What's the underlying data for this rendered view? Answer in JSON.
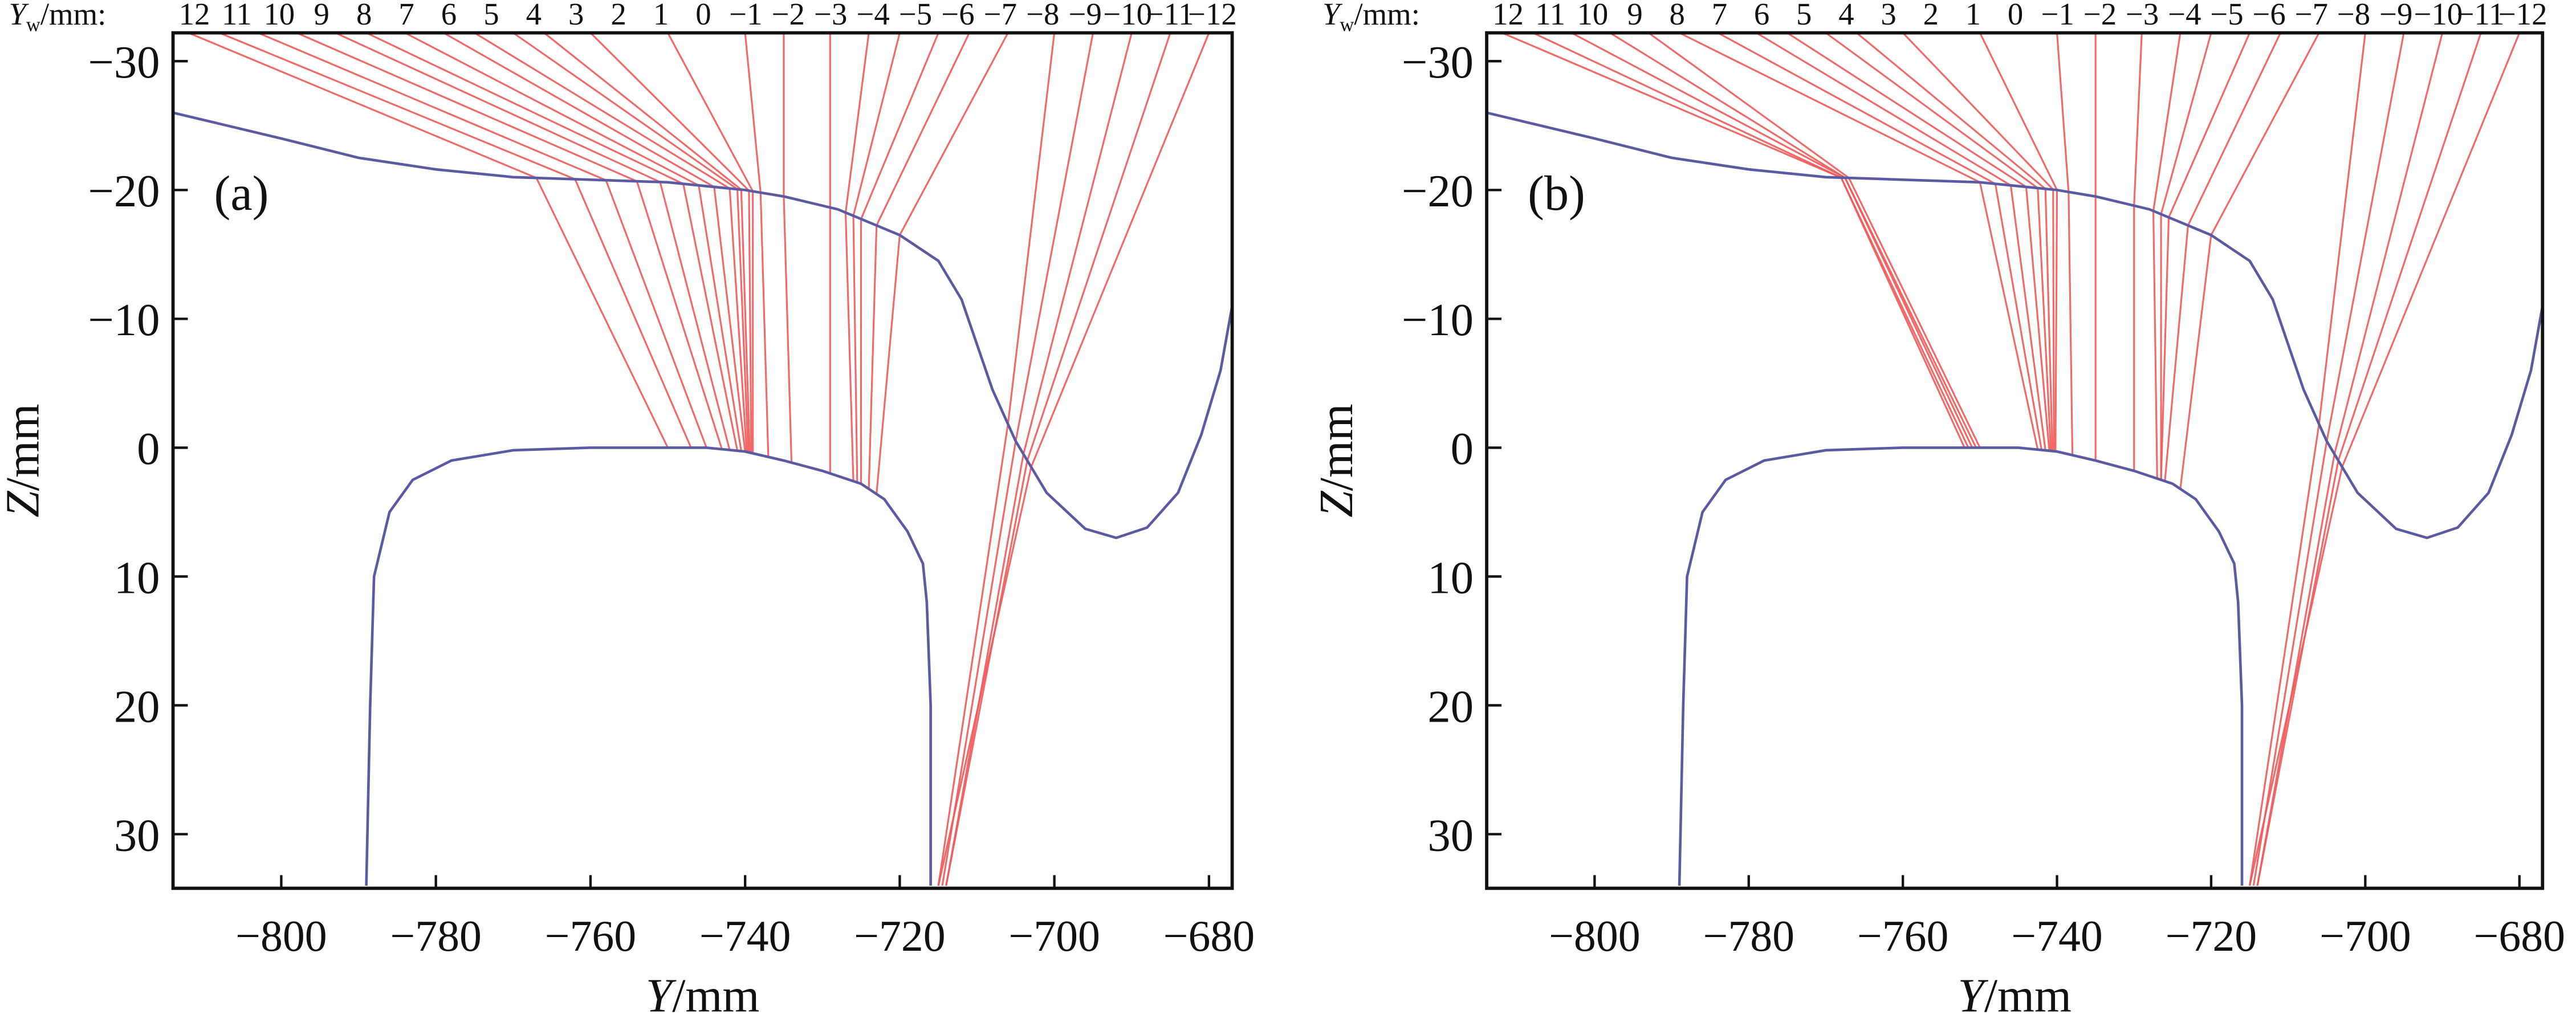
{
  "chart_data": [
    {
      "type": "line",
      "panel_label": "(a)",
      "xlabel_var": "Y",
      "xlabel_unit": "/mm",
      "ylabel_var": "Z",
      "ylabel_unit": "/mm",
      "top_axis_label_var": "Y",
      "top_axis_label_sub": "w",
      "top_axis_label_unit": "/mm:",
      "top_ticks": [
        "12",
        "11",
        "10",
        "9",
        "8",
        "7",
        "6",
        "5",
        "4",
        "3",
        "2",
        "1",
        "0",
        "−1",
        "−2",
        "−3",
        "−4",
        "−5",
        "−6",
        "−7",
        "−8",
        "−9",
        "−10",
        "−11",
        "−12"
      ],
      "xlim": [
        -814,
        -677
      ],
      "ylim": [
        -32.2,
        34.2
      ],
      "y_inverted": true,
      "xticks": [
        -800,
        -780,
        -760,
        -740,
        -720,
        -700,
        -680
      ],
      "xtick_labels": [
        "−800",
        "−780",
        "−760",
        "−740",
        "−720",
        "−700",
        "−680"
      ],
      "yticks": [
        -30,
        -20,
        -10,
        0,
        10,
        20,
        30
      ],
      "ytick_labels": [
        "−30",
        "−20",
        "−10",
        "0",
        "10",
        "20",
        "30"
      ],
      "grid": false,
      "series": [
        {
          "name": "wheel profile",
          "color": "#5b5ba3",
          "points": [
            [
              -814,
              -26
            ],
            [
              -800,
              -24
            ],
            [
              -790,
              -22.5
            ],
            [
              -780,
              -21.6
            ],
            [
              -770,
              -21
            ],
            [
              -760,
              -20.8
            ],
            [
              -750,
              -20.6
            ],
            [
              -740,
              -20
            ],
            [
              -735,
              -19.5
            ],
            [
              -728,
              -18.5
            ],
            [
              -720,
              -16.5
            ],
            [
              -715,
              -14.5
            ],
            [
              -712,
              -11.5
            ],
            [
              -710,
              -8
            ],
            [
              -708,
              -4.5
            ],
            [
              -705,
              -0.5
            ],
            [
              -701,
              3.5
            ],
            [
              -696,
              6.3
            ],
            [
              -692,
              7
            ],
            [
              -688,
              6.2
            ],
            [
              -684,
              3.5
            ],
            [
              -681,
              -1
            ],
            [
              -678.5,
              -6
            ],
            [
              -677,
              -11
            ]
          ]
        },
        {
          "name": "rail profile",
          "color": "#5b5ba3",
          "points": [
            [
              -789,
              34
            ],
            [
              -788.5,
              20
            ],
            [
              -788,
              10
            ],
            [
              -786,
              5
            ],
            [
              -783,
              2.5
            ],
            [
              -778,
              1
            ],
            [
              -770,
              0.2
            ],
            [
              -760,
              0
            ],
            [
              -745,
              0
            ],
            [
              -740,
              0.3
            ],
            [
              -735,
              1
            ],
            [
              -730,
              1.8
            ],
            [
              -725,
              2.8
            ],
            [
              -722,
              4
            ],
            [
              -719,
              6.5
            ],
            [
              -717,
              9
            ],
            [
              -716.5,
              12
            ],
            [
              -716,
              20
            ],
            [
              -716,
              34
            ]
          ]
        }
      ],
      "contact_lines": {
        "color": "#ef5a5a",
        "center_color": "#7fcfc8",
        "columns": [
          "source_Y",
          "wheel_contact_Y",
          "rail_contact_Y"
        ],
        "rows": [
          [
            -812,
            -767,
            -750
          ],
          [
            -808,
            -762,
            -747
          ],
          [
            -803,
            -758,
            -745
          ],
          [
            -798,
            -754,
            -743
          ],
          [
            -793,
            -751,
            -742
          ],
          [
            -789,
            -748,
            -741
          ],
          [
            -784,
            -746,
            -740.5
          ],
          [
            -779,
            -744,
            -740
          ],
          [
            -775,
            -742,
            -739.8
          ],
          [
            -770,
            -741,
            -739.6
          ],
          [
            -766,
            -740.5,
            -739.4
          ],
          [
            -760,
            -739.5,
            -739.2
          ],
          [
            -750,
            -739,
            -739
          ],
          [
            -740,
            -738,
            -737
          ],
          [
            -735,
            -735,
            -734
          ],
          [
            -729,
            -729,
            -729
          ],
          [
            -724,
            -727,
            -726
          ],
          [
            -720,
            -726,
            -725.5
          ],
          [
            -715,
            -725,
            -725
          ],
          [
            -711,
            -723,
            -724
          ],
          [
            -706,
            -720,
            -723
          ],
          [
            -700,
            -706,
            -715
          ],
          [
            -695,
            -705,
            -714.5
          ],
          [
            -690,
            -704,
            -714
          ],
          [
            -685,
            -703.5,
            -714
          ],
          [
            -680,
            -703,
            -715
          ]
        ],
        "center_line": [
          -744.4,
          -740,
          -740
        ]
      }
    },
    {
      "type": "line",
      "panel_label": "(b)",
      "xlabel_var": "Y",
      "xlabel_unit": "/mm",
      "ylabel_var": "Z",
      "ylabel_unit": "/mm",
      "top_axis_label_var": "Y",
      "top_axis_label_sub": "w",
      "top_axis_label_unit": "/mm:",
      "top_ticks": [
        "12",
        "11",
        "10",
        "9",
        "8",
        "7",
        "6",
        "5",
        "4",
        "3",
        "2",
        "1",
        "0",
        "−1",
        "−2",
        "−3",
        "−4",
        "−5",
        "−6",
        "−7",
        "−8",
        "−9",
        "−10",
        "−11",
        "−12"
      ],
      "xlim": [
        -814,
        -677
      ],
      "ylim": [
        -32.2,
        34.2
      ],
      "y_inverted": true,
      "xticks": [
        -800,
        -780,
        -760,
        -740,
        -720,
        -700,
        -680
      ],
      "xtick_labels": [
        "−800",
        "−780",
        "−760",
        "−740",
        "−720",
        "−700",
        "−680"
      ],
      "yticks": [
        -30,
        -20,
        -10,
        0,
        10,
        20,
        30
      ],
      "ytick_labels": [
        "−30",
        "−20",
        "−10",
        "0",
        "10",
        "20",
        "30"
      ],
      "grid": false,
      "series": [
        {
          "name": "wheel profile",
          "color": "#5b5ba3",
          "points": [
            [
              -814,
              -26
            ],
            [
              -800,
              -24
            ],
            [
              -790,
              -22.5
            ],
            [
              -780,
              -21.6
            ],
            [
              -770,
              -21
            ],
            [
              -760,
              -20.8
            ],
            [
              -750,
              -20.6
            ],
            [
              -740,
              -20
            ],
            [
              -735,
              -19.5
            ],
            [
              -728,
              -18.5
            ],
            [
              -720,
              -16.5
            ],
            [
              -715,
              -14.5
            ],
            [
              -712,
              -11.5
            ],
            [
              -710,
              -8
            ],
            [
              -708,
              -4.5
            ],
            [
              -705,
              -0.5
            ],
            [
              -701,
              3.5
            ],
            [
              -696,
              6.3
            ],
            [
              -692,
              7
            ],
            [
              -688,
              6.2
            ],
            [
              -684,
              3.5
            ],
            [
              -681,
              -1
            ],
            [
              -678.5,
              -6
            ],
            [
              -677,
              -11
            ]
          ]
        },
        {
          "name": "rail profile",
          "color": "#5b5ba3",
          "points": [
            [
              -789,
              34
            ],
            [
              -788.5,
              20
            ],
            [
              -788,
              10
            ],
            [
              -786,
              5
            ],
            [
              -783,
              2.5
            ],
            [
              -778,
              1
            ],
            [
              -770,
              0.2
            ],
            [
              -760,
              0
            ],
            [
              -745,
              0
            ],
            [
              -740,
              0.3
            ],
            [
              -735,
              1
            ],
            [
              -730,
              1.8
            ],
            [
              -725,
              2.8
            ],
            [
              -722,
              4
            ],
            [
              -719,
              6.5
            ],
            [
              -717,
              9
            ],
            [
              -716.5,
              12
            ],
            [
              -716,
              20
            ],
            [
              -716,
              34
            ]
          ]
        }
      ],
      "contact_lines": {
        "color": "#ef5a5a",
        "center_color": "#7fcfc8",
        "columns": [
          "source_Y",
          "wheel_contact_Y",
          "rail_contact_Y"
        ],
        "rows": [
          [
            -812,
            -768,
            -752
          ],
          [
            -808,
            -768,
            -751.5
          ],
          [
            -803,
            -767.5,
            -751
          ],
          [
            -798,
            -767.5,
            -750.5
          ],
          [
            -793,
            -767,
            -750
          ],
          [
            -789,
            -750,
            -742.5
          ],
          [
            -784,
            -748,
            -742
          ],
          [
            -779,
            -746,
            -741.5
          ],
          [
            -775,
            -744,
            -741
          ],
          [
            -770,
            -742.5,
            -740.8
          ],
          [
            -766,
            -741.5,
            -740.6
          ],
          [
            -760,
            -740.5,
            -740.4
          ],
          [
            -750,
            -740,
            -740.2
          ],
          [
            -740,
            -738.5,
            -738
          ],
          [
            -735,
            -735,
            -735
          ],
          [
            -729,
            -730,
            -730
          ],
          [
            -724,
            -727.5,
            -727
          ],
          [
            -720,
            -726.5,
            -726.5
          ],
          [
            -715,
            -725.5,
            -726.5
          ],
          [
            -711,
            -723,
            -726
          ],
          [
            -706,
            -720,
            -724
          ],
          [
            -700,
            -706,
            -715
          ],
          [
            -695,
            -705,
            -714.5
          ],
          [
            -690,
            -704,
            -714
          ],
          [
            -685,
            -703.5,
            -714
          ],
          [
            -680,
            -703,
            -715
          ]
        ],
        "center_line": [
          -744.4,
          -740,
          -740
        ]
      }
    }
  ]
}
